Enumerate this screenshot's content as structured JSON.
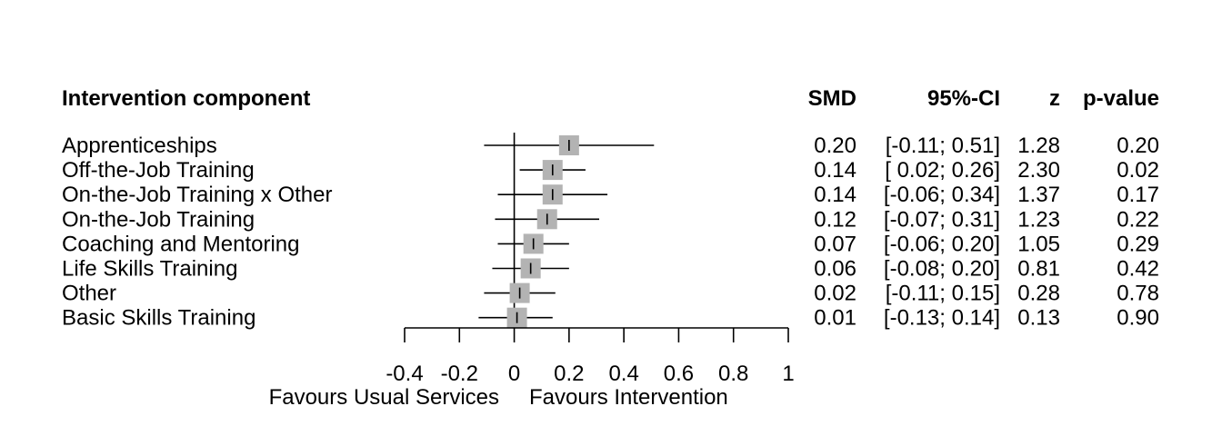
{
  "chart_data": {
    "type": "forest",
    "title": "",
    "headers": {
      "label": "Intervention component",
      "estimate": "SMD",
      "ci": "95%-CI",
      "z": "z",
      "p": "p-value"
    },
    "rows": [
      {
        "label": "Apprenticeships",
        "smd": 0.2,
        "lower": -0.11,
        "upper": 0.51,
        "smd_text": "0.20",
        "ci_text": "[-0.11; 0.51]",
        "z": "1.28",
        "p": "0.20",
        "weight": 1.0
      },
      {
        "label": "Off-the-Job Training",
        "smd": 0.14,
        "lower": 0.02,
        "upper": 0.26,
        "smd_text": "0.14",
        "ci_text": "[ 0.02; 0.26]",
        "z": "2.30",
        "p": "0.02",
        "weight": 1.0
      },
      {
        "label": "On-the-Job Training x Other",
        "smd": 0.14,
        "lower": -0.06,
        "upper": 0.34,
        "smd_text": "0.14",
        "ci_text": "[-0.06; 0.34]",
        "z": "1.37",
        "p": "0.17",
        "weight": 1.0
      },
      {
        "label": "On-the-Job Training",
        "smd": 0.12,
        "lower": -0.07,
        "upper": 0.31,
        "smd_text": "0.12",
        "ci_text": "[-0.07; 0.31]",
        "z": "1.23",
        "p": "0.22",
        "weight": 1.0
      },
      {
        "label": "Coaching and Mentoring",
        "smd": 0.07,
        "lower": -0.06,
        "upper": 0.2,
        "smd_text": "0.07",
        "ci_text": "[-0.06; 0.20]",
        "z": "1.05",
        "p": "0.29",
        "weight": 1.0
      },
      {
        "label": "Life Skills Training",
        "smd": 0.06,
        "lower": -0.08,
        "upper": 0.2,
        "smd_text": "0.06",
        "ci_text": "[-0.08; 0.20]",
        "z": "0.81",
        "p": "0.42",
        "weight": 1.0
      },
      {
        "label": "Other",
        "smd": 0.02,
        "lower": -0.11,
        "upper": 0.15,
        "smd_text": "0.02",
        "ci_text": "[-0.11; 0.15]",
        "z": "0.28",
        "p": "0.78",
        "weight": 1.0
      },
      {
        "label": "Basic Skills Training",
        "smd": 0.01,
        "lower": -0.13,
        "upper": 0.14,
        "smd_text": "0.01",
        "ci_text": "[-0.13; 0.14]",
        "z": "0.13",
        "p": "0.90",
        "weight": 1.0
      }
    ],
    "xlim": [
      -0.4,
      1
    ],
    "xticks": [
      -0.4,
      -0.2,
      0,
      0.2,
      0.4,
      0.6,
      0.8,
      1
    ],
    "xtick_labels": [
      "-0.4",
      "-0.2",
      "0",
      "0.2",
      "0.4",
      "0.6",
      "0.8",
      "1"
    ],
    "reference_line": 0,
    "xlabel_left": "Favours Usual Services",
    "xlabel_right": "Favours Intervention",
    "colors": {
      "box": "#b3b3b3",
      "line": "#000000"
    }
  }
}
